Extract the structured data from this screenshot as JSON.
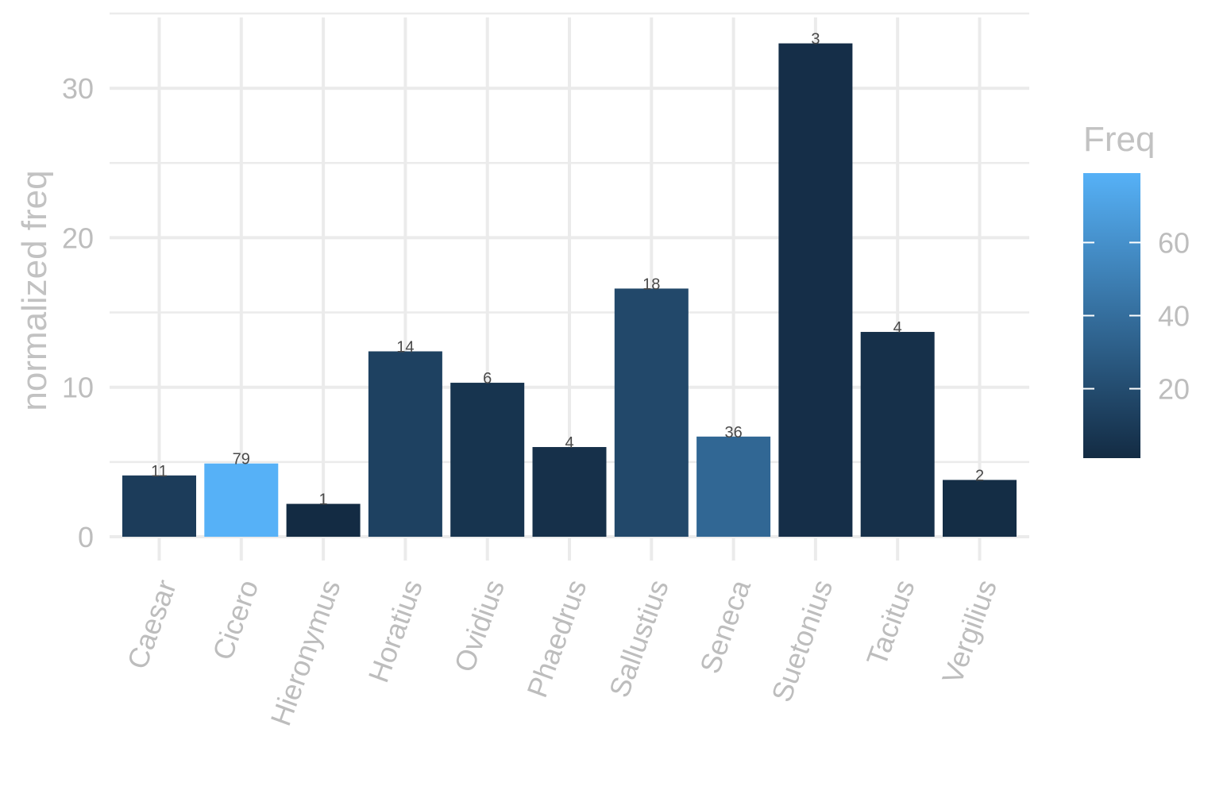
{
  "chart_data": {
    "type": "bar",
    "categories": [
      "Caesar",
      "Cicero",
      "Hieronymus",
      "Horatius",
      "Ovidius",
      "Phaedrus",
      "Sallustius",
      "Seneca",
      "Suetonius",
      "Tacitus",
      "Vergilius"
    ],
    "values": [
      4.1,
      4.9,
      2.2,
      12.4,
      10.3,
      6.0,
      16.6,
      6.7,
      33.0,
      13.7,
      3.8
    ],
    "freq": [
      11,
      79,
      1,
      14,
      6,
      4,
      18,
      36,
      3,
      4,
      2
    ],
    "bar_labels": [
      "11",
      "79",
      "1",
      "14",
      "6",
      "4",
      "18",
      "36",
      "3",
      "4",
      "2"
    ],
    "xlabel": "",
    "ylabel": "normalized freq",
    "ylim": [
      0,
      33
    ],
    "yticks": [
      0,
      10,
      20,
      30
    ],
    "ytick_labels": [
      "0",
      "10",
      "20",
      "30"
    ],
    "grid": true,
    "x_tick_rotation": "rotated",
    "legend": {
      "title": "Freq",
      "type": "colorbar",
      "position": "right",
      "range": [
        1,
        79
      ],
      "ticks": [
        20,
        40,
        60
      ],
      "tick_labels": [
        "20",
        "40",
        "60"
      ],
      "color_low": "#132b43",
      "color_high": "#56b1f7"
    }
  }
}
